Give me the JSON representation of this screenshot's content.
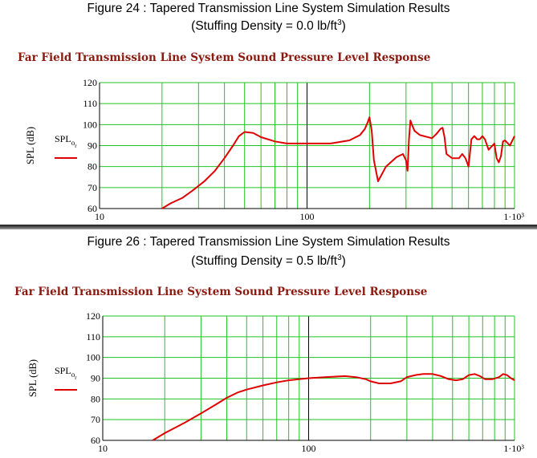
{
  "panels": [
    {
      "figure_title_line1": "Figure 24 : Tapered Transmission Line System Simulation Results",
      "figure_title_line2_prefix": "(Stuffing Density = 0.0 lb/ft",
      "figure_title_line2_sup": "3",
      "figure_title_line2_suffix": ")",
      "chart_title": "Far Field Transmission Line System Sound Pressure Level Response"
    },
    {
      "figure_title_line1": "Figure 26 : Tapered Transmission Line System Simulation Results",
      "figure_title_line2_prefix": "(Stuffing Density = 0.5 lb/ft",
      "figure_title_line2_sup": "3",
      "figure_title_line2_suffix": ")",
      "chart_title": "Far Field Transmission Line System Sound Pressure Level Response"
    }
  ],
  "colors": {
    "grid": "#22c322",
    "curve": "#e00000",
    "axis": "#000000",
    "title": "#8b1a10"
  },
  "chart_data": [
    {
      "type": "line",
      "title": "Far Field Transmission Line System Sound Pressure Level Response",
      "xscale": "log",
      "xlim": [
        10,
        1000
      ],
      "ylim": [
        60,
        120
      ],
      "grid": true,
      "xticks": [
        "10",
        "100",
        "1·10³"
      ],
      "yticks": [
        "60",
        "70",
        "80",
        "90",
        "100",
        "110",
        "120"
      ],
      "ylabel": "SPL (dB)",
      "legend": {
        "label": "SPL",
        "sub": "o",
        "subsub": "r",
        "placement": "left"
      },
      "series": [
        {
          "name": "SPL_or",
          "x": [
            20,
            22,
            25,
            28,
            32,
            36,
            40,
            44,
            47,
            50,
            55,
            60,
            70,
            80,
            100,
            130,
            160,
            180,
            190,
            196,
            200,
            205,
            210,
            220,
            240,
            270,
            290,
            300,
            305,
            310,
            315,
            320,
            330,
            350,
            400,
            420,
            440,
            450,
            460,
            470,
            500,
            540,
            560,
            580,
            590,
            600,
            620,
            640,
            660,
            680,
            700,
            720,
            750,
            800,
            820,
            840,
            860,
            880,
            900,
            950,
            1000
          ],
          "y": [
            60,
            62.5,
            65,
            68.5,
            73,
            78,
            84,
            90,
            94.5,
            96.5,
            96,
            94,
            92,
            91,
            91,
            91,
            92.5,
            95,
            98,
            101,
            103.5,
            97,
            83,
            73,
            80,
            84.5,
            86,
            83,
            78,
            93,
            102,
            100,
            97,
            95,
            93.5,
            95.5,
            98,
            98.5,
            94,
            86,
            84,
            84,
            86,
            84,
            82,
            80,
            93,
            94.5,
            93,
            93,
            94.5,
            93,
            88,
            91,
            84,
            82,
            85,
            92,
            92.5,
            90,
            94.5
          ]
        }
      ]
    },
    {
      "type": "line",
      "title": "Far Field Transmission Line System Sound Pressure Level Response",
      "xscale": "log",
      "xlim": [
        10,
        1000
      ],
      "ylim": [
        60,
        120
      ],
      "grid": true,
      "xticks": [
        "10",
        "100",
        "1·10³"
      ],
      "yticks": [
        "60",
        "70",
        "80",
        "90",
        "100",
        "110",
        "120"
      ],
      "ylabel": "SPL (dB)",
      "legend": {
        "label": "SPL",
        "sub": "o",
        "subsub": "r",
        "placement": "left"
      },
      "series": [
        {
          "name": "SPL_or",
          "x": [
            17.5,
            20,
            25,
            30,
            35,
            40,
            45,
            50,
            60,
            70,
            80,
            100,
            120,
            150,
            170,
            190,
            200,
            220,
            250,
            280,
            300,
            330,
            360,
            400,
            440,
            480,
            520,
            560,
            600,
            640,
            680,
            720,
            780,
            840,
            880,
            920,
            960,
            1000
          ],
          "y": [
            60,
            63.5,
            68.5,
            73,
            77,
            80.5,
            83,
            84.5,
            86.5,
            88,
            89,
            90,
            90.5,
            91,
            90.5,
            89.5,
            88.5,
            87.5,
            87.5,
            88.5,
            90.5,
            91.5,
            92,
            92,
            91,
            89.5,
            89,
            89.5,
            91.5,
            92,
            91,
            89.5,
            89.5,
            90.5,
            92,
            91.5,
            90,
            89
          ]
        }
      ]
    }
  ]
}
